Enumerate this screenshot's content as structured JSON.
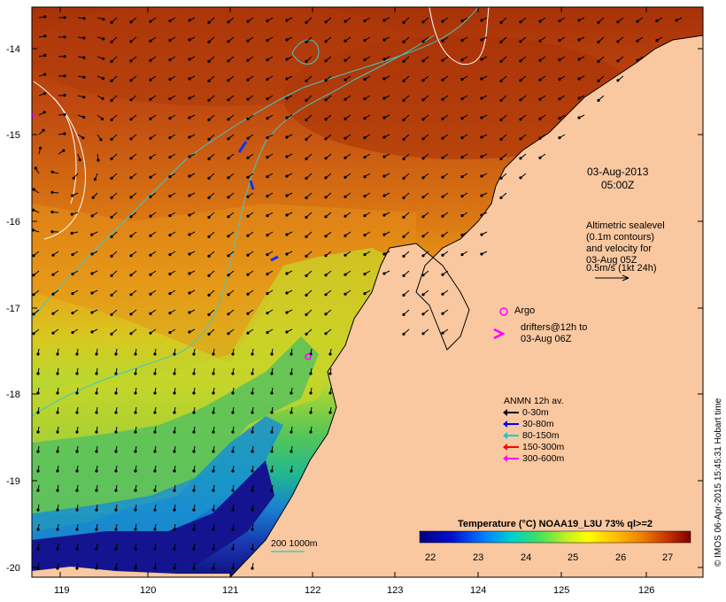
{
  "map": {
    "lat_ticks": [
      "-14",
      "-15",
      "-16",
      "-17",
      "-18",
      "-19",
      "-20"
    ],
    "lon_ticks": [
      "119",
      "120",
      "121",
      "122",
      "123",
      "124",
      "125",
      "126"
    ],
    "timestamp_date": "03-Aug-2013",
    "timestamp_time": "05:00Z",
    "altimetry_lines": [
      "Altimetric sealevel",
      "(0.1m contours)",
      "and velocity for",
      "03-Aug 05Z",
      "0.5m/s (1kt 24h)"
    ],
    "argo_label": "Argo",
    "drifters_lines": [
      "drifters@12h to",
      "03-Aug 06Z"
    ],
    "anmn_title": "ANMN 12h av.",
    "anmn_items": [
      {
        "label": "0-30m",
        "color": "#000000"
      },
      {
        "label": "30-80m",
        "color": "#0000ff"
      },
      {
        "label": "80-150m",
        "color": "#00d0d0"
      },
      {
        "label": "150-300m",
        "color": "#ff0000"
      },
      {
        "label": "300-600m",
        "color": "#ff00ff"
      }
    ],
    "depth_label": "200  1000m",
    "colorbar_title": "Temperature (°C) NOAA19_L3U 73% ql>=2",
    "colorbar_ticks": [
      "22",
      "23",
      "24",
      "25",
      "26",
      "27"
    ],
    "credit": "© IMOS 06-Apr-2015 15:45:31 Hobart time",
    "colors": {
      "land": "#f9c8a0",
      "warm": "#c24a10",
      "cool": "#1b1b9a",
      "contour_cyan": "#40c8c8"
    }
  }
}
